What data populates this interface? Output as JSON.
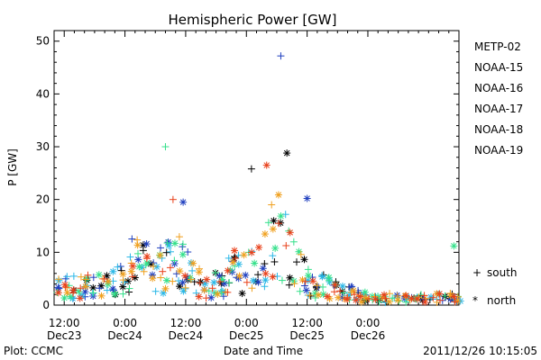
{
  "chart_data": {
    "type": "scatter",
    "title": "Hemispheric Power [GW]",
    "xlabel": "Date and Time",
    "ylabel": "P [GW]",
    "ylim": [
      0,
      52
    ],
    "y_ticks": [
      0,
      10,
      20,
      30,
      40,
      50
    ],
    "xlim_hours": [
      0,
      80
    ],
    "x_ticks": [
      {
        "time": "12:00",
        "date": "Dec23"
      },
      {
        "time": "0:00",
        "date": "Dec24"
      },
      {
        "time": "12:00",
        "date": "Dec24"
      },
      {
        "time": "0:00",
        "date": "Dec25"
      },
      {
        "time": "12:00",
        "date": "Dec25"
      },
      {
        "time": "0:00",
        "date": "Dec26"
      }
    ],
    "legend_position": "right",
    "marker_legend": [
      {
        "symbol": "+",
        "label": "south"
      },
      {
        "symbol": "*",
        "label": "north"
      }
    ],
    "series": [
      {
        "name": "METP-02",
        "color": "#000000"
      },
      {
        "name": "NOAA-15",
        "color": "#1f3fbf"
      },
      {
        "name": "NOAA-16",
        "color": "#29b7e6"
      },
      {
        "name": "NOAA-17",
        "color": "#33e08a"
      },
      {
        "name": "NOAA-18",
        "color": "#f0a01e"
      },
      {
        "name": "NOAA-19",
        "color": "#e8401a"
      }
    ],
    "notable_points": [
      {
        "series": "NOAA-15",
        "hour": 44.8,
        "value": 47.2,
        "marker": "+"
      },
      {
        "series": "NOAA-17",
        "hour": 22.0,
        "value": 30.0,
        "marker": "+"
      },
      {
        "series": "NOAA-19",
        "hour": 42.0,
        "value": 26.5,
        "marker": "*"
      },
      {
        "series": "METP-02",
        "hour": 46.0,
        "value": 28.8,
        "marker": "*"
      },
      {
        "series": "METP-02",
        "hour": 39.0,
        "value": 25.8,
        "marker": "+"
      },
      {
        "series": "NOAA-15",
        "hour": 50.0,
        "value": 20.2,
        "marker": "*"
      },
      {
        "series": "NOAA-19",
        "hour": 23.5,
        "value": 20.0,
        "marker": "+"
      },
      {
        "series": "NOAA-15",
        "hour": 25.5,
        "value": 19.5,
        "marker": "*"
      },
      {
        "series": "NOAA-17",
        "hour": 79.0,
        "value": 11.2,
        "marker": "*"
      }
    ]
  },
  "footer": {
    "plot_source": "Plot: CCMC",
    "timestamp": "2011/12/26 10:15:05"
  }
}
